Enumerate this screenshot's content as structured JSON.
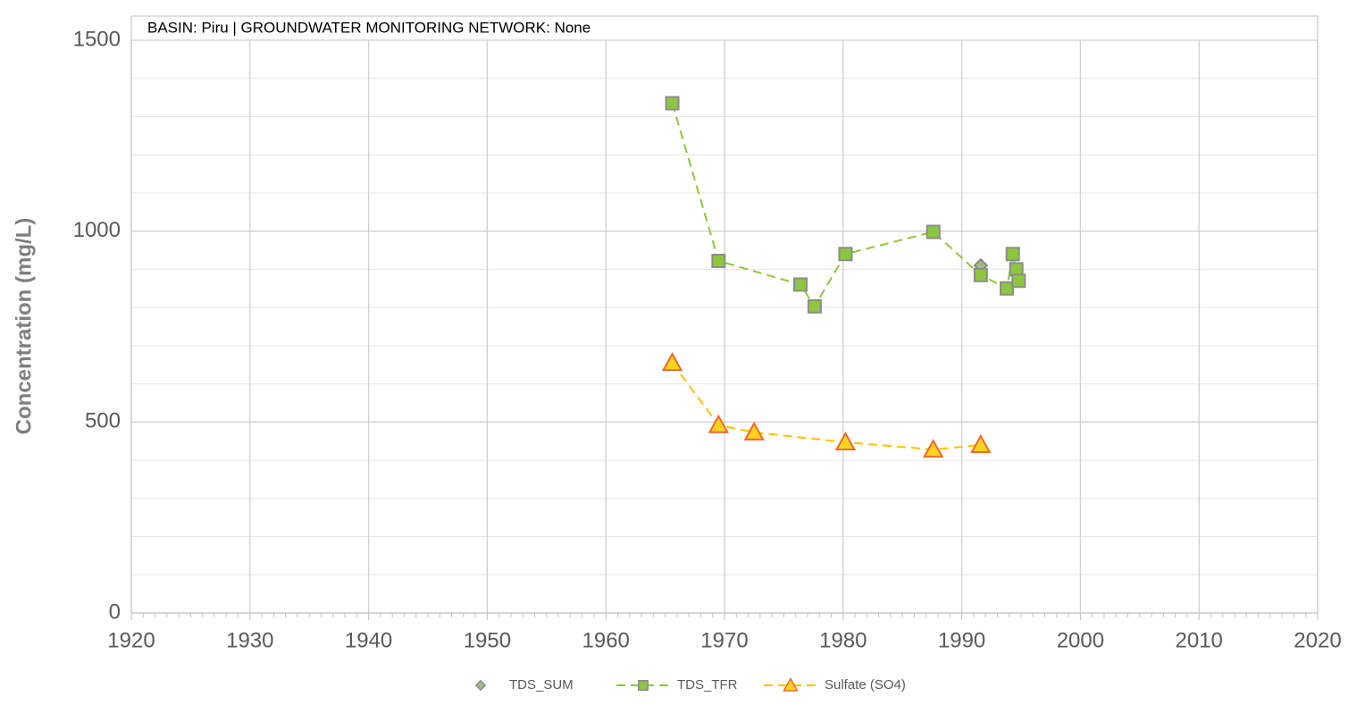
{
  "chart_data": {
    "type": "line",
    "annotation": "BASIN: Piru  |  GROUNDWATER MONITORING NETWORK: None",
    "y_label": "Concentration (mg/L)",
    "xlim": [
      1920,
      2020
    ],
    "xticks": [
      1920,
      1930,
      1940,
      1950,
      1960,
      1970,
      1980,
      1990,
      2000,
      2010,
      2020
    ],
    "ylim": [
      0,
      1500
    ],
    "yticks": [
      0,
      500,
      1000,
      1500
    ],
    "grid": true,
    "legend": "bottom",
    "series": [
      {
        "name": "TDS_SUM",
        "color": "#a4b98a",
        "edge": "#8c8c8c",
        "marker": "diamond",
        "line": false,
        "x": [
          1991.6
        ],
        "values": [
          910
        ]
      },
      {
        "name": "TDS_TFR",
        "color": "#8dc63f",
        "edge": "#8c8c8c",
        "marker": "square",
        "line": "dashed",
        "x": [
          1965.6,
          1969.5,
          1976.4,
          1977.6,
          1980.2,
          1987.6,
          1991.6,
          1993.8,
          1994.3,
          1994.6,
          1994.8
        ],
        "values": [
          1335,
          922,
          860,
          803,
          940,
          998,
          885,
          850,
          940,
          900,
          870
        ]
      },
      {
        "name": "Sulfate (SO4)",
        "color": "#ffd21f",
        "edge": "#ed6a2d",
        "linecolor": "#ffc000",
        "marker": "triangle",
        "line": "dashed",
        "x": [
          1965.6,
          1969.5,
          1972.5,
          1980.2,
          1987.6,
          1991.6
        ],
        "values": [
          655,
          492,
          473,
          447,
          428,
          440
        ]
      }
    ]
  }
}
